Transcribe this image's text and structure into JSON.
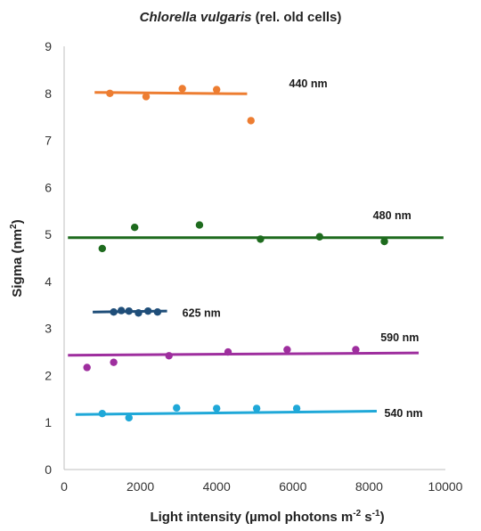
{
  "chart_data": {
    "type": "scatter",
    "title_italic": "Chlorella vulgaris",
    "title_rest": " (rel. old cells)",
    "xlabel_main": "Light intensity (µmol photons m",
    "xlabel_sup1": "-2",
    "xlabel_mid": " s",
    "xlabel_sup2": "-1",
    "xlabel_end": ")",
    "ylabel_main": "Sigma (nm",
    "ylabel_sup": "2",
    "ylabel_end": ")",
    "xlim": [
      0,
      10000
    ],
    "ylim": [
      0,
      9
    ],
    "x_ticks": [
      0,
      2000,
      4000,
      6000,
      8000,
      10000
    ],
    "y_ticks": [
      0,
      1,
      2,
      3,
      4,
      5,
      6,
      7,
      8,
      9
    ],
    "grid": false,
    "series": [
      {
        "name": "440 nm",
        "color": "#ed7d31",
        "points": [
          [
            1200,
            8.0
          ],
          [
            2150,
            7.93
          ],
          [
            3100,
            8.1
          ],
          [
            4000,
            8.08
          ],
          [
            4900,
            7.42
          ]
        ],
        "trend": [
          [
            800,
            8.02
          ],
          [
            4800,
            7.99
          ]
        ]
      },
      {
        "name": "480 nm",
        "color": "#1e6b1e",
        "points": [
          [
            1000,
            4.7
          ],
          [
            1850,
            5.15
          ],
          [
            3550,
            5.2
          ],
          [
            5150,
            4.9
          ],
          [
            6700,
            4.95
          ],
          [
            8400,
            4.85
          ]
        ],
        "trend": [
          [
            100,
            4.93
          ],
          [
            9950,
            4.93
          ]
        ]
      },
      {
        "name": "625 nm",
        "color": "#1f4e79",
        "points": [
          [
            1300,
            3.35
          ],
          [
            1500,
            3.38
          ],
          [
            1700,
            3.37
          ],
          [
            1950,
            3.33
          ],
          [
            2200,
            3.37
          ],
          [
            2450,
            3.35
          ]
        ],
        "trend": [
          [
            750,
            3.35
          ],
          [
            2700,
            3.37
          ]
        ]
      },
      {
        "name": "590 nm",
        "color": "#9e2e9e",
        "points": [
          [
            600,
            2.17
          ],
          [
            1300,
            2.28
          ],
          [
            2750,
            2.42
          ],
          [
            4300,
            2.5
          ],
          [
            5850,
            2.55
          ],
          [
            7650,
            2.55
          ]
        ],
        "trend": [
          [
            100,
            2.43
          ],
          [
            9300,
            2.48
          ]
        ]
      },
      {
        "name": "540 nm",
        "color": "#1fa8d8",
        "points": [
          [
            1000,
            1.19
          ],
          [
            1700,
            1.1
          ],
          [
            2950,
            1.31
          ],
          [
            4000,
            1.3
          ],
          [
            5050,
            1.3
          ],
          [
            6100,
            1.3
          ]
        ],
        "trend": [
          [
            300,
            1.17
          ],
          [
            8200,
            1.24
          ]
        ]
      }
    ],
    "labels": [
      {
        "text": "440 nm",
        "x": 5900,
        "y": 8.2
      },
      {
        "text": "480 nm",
        "x": 8100,
        "y": 5.4
      },
      {
        "text": "625 nm",
        "x": 3100,
        "y": 3.33
      },
      {
        "text": "590 nm",
        "x": 8300,
        "y": 2.8
      },
      {
        "text": "540 nm",
        "x": 8400,
        "y": 1.19
      }
    ]
  }
}
